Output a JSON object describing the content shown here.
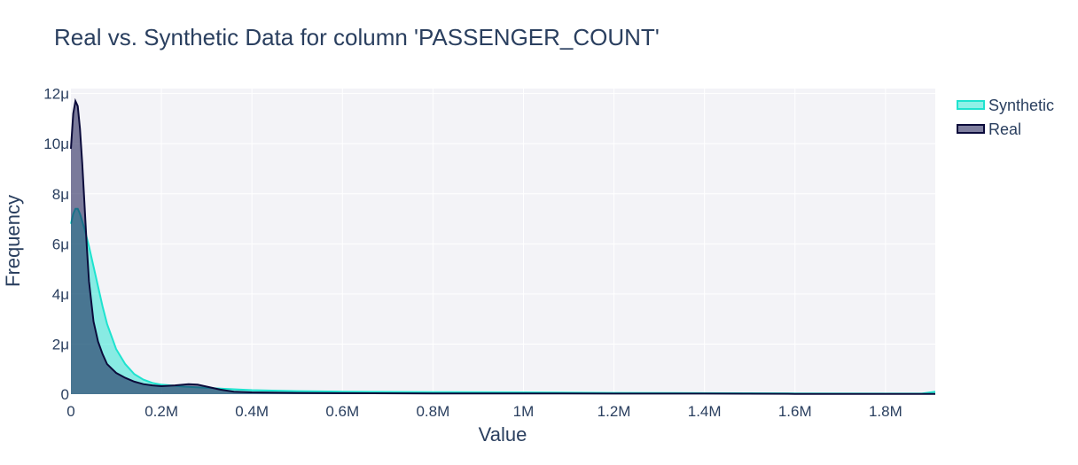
{
  "chart_data": {
    "type": "area",
    "title": "Real vs. Synthetic Data for column 'PASSENGER_COUNT'",
    "xlabel": "Value",
    "ylabel": "Frequency",
    "xlim": [
      0,
      1910000
    ],
    "ylim": [
      0,
      1.22e-05
    ],
    "grid": true,
    "legend_position": "top-right",
    "x_ticks": [
      {
        "value": 0,
        "label": "0"
      },
      {
        "value": 200000,
        "label": "0.2M"
      },
      {
        "value": 400000,
        "label": "0.4M"
      },
      {
        "value": 600000,
        "label": "0.6M"
      },
      {
        "value": 800000,
        "label": "0.8M"
      },
      {
        "value": 1000000,
        "label": "1M"
      },
      {
        "value": 1200000,
        "label": "1.2M"
      },
      {
        "value": 1400000,
        "label": "1.4M"
      },
      {
        "value": 1600000,
        "label": "1.6M"
      },
      {
        "value": 1800000,
        "label": "1.8M"
      }
    ],
    "y_ticks": [
      {
        "value": 0,
        "label": "0"
      },
      {
        "value": 2e-06,
        "label": "2μ"
      },
      {
        "value": 4e-06,
        "label": "4μ"
      },
      {
        "value": 6e-06,
        "label": "6μ"
      },
      {
        "value": 8e-06,
        "label": "8μ"
      },
      {
        "value": 1e-05,
        "label": "10μ"
      },
      {
        "value": 1.2e-05,
        "label": "12μ"
      }
    ],
    "series": [
      {
        "name": "Synthetic",
        "color": "#1ee3cf",
        "fill": "rgba(30,227,207,0.5)",
        "x": [
          0,
          5000,
          10000,
          15000,
          20000,
          25000,
          30000,
          40000,
          50000,
          60000,
          70000,
          80000,
          100000,
          120000,
          140000,
          160000,
          180000,
          200000,
          250000,
          300000,
          350000,
          400000,
          500000,
          600000,
          800000,
          1000000,
          1200000,
          1400000,
          1600000,
          1800000,
          1880000,
          1910000
        ],
        "y": [
          6.8e-06,
          7.2e-06,
          7.4e-06,
          7.4e-06,
          7.2e-06,
          6.9e-06,
          6.6e-06,
          5.9e-06,
          5.1e-06,
          4.3e-06,
          3.5e-06,
          2.8e-06,
          1.8e-06,
          1.2e-06,
          8e-07,
          5.8e-07,
          4.5e-07,
          3.8e-07,
          3e-07,
          2.5e-07,
          2e-07,
          1.6e-07,
          1.2e-07,
          1e-07,
          8e-08,
          7e-08,
          5e-08,
          4e-08,
          3e-08,
          2e-08,
          2e-08,
          1e-07
        ]
      },
      {
        "name": "Real",
        "color": "#0b0b3b",
        "fill": "rgba(22,22,80,0.55)",
        "x": [
          0,
          5000,
          10000,
          15000,
          20000,
          25000,
          30000,
          35000,
          40000,
          50000,
          60000,
          70000,
          80000,
          100000,
          120000,
          140000,
          160000,
          180000,
          200000,
          230000,
          260000,
          280000,
          300000,
          330000,
          360000,
          400000,
          500000,
          600000,
          800000,
          1000000,
          1200000,
          1400000,
          1600000,
          1800000,
          1910000
        ],
        "y": [
          9.8e-06,
          1.12e-05,
          1.17e-05,
          1.15e-05,
          1.06e-05,
          9.2e-06,
          7.6e-06,
          5.9e-06,
          4.5e-06,
          2.9e-06,
          2.1e-06,
          1.6e-06,
          1.2e-06,
          8.5e-07,
          6.5e-07,
          5e-07,
          4e-07,
          3.5e-07,
          3.2e-07,
          3.5e-07,
          4e-07,
          3.8e-07,
          3e-07,
          1.8e-07,
          1e-07,
          7e-08,
          5e-08,
          4e-08,
          3e-08,
          3e-08,
          2e-08,
          2e-08,
          1e-08,
          1e-08,
          1e-08
        ]
      }
    ]
  }
}
